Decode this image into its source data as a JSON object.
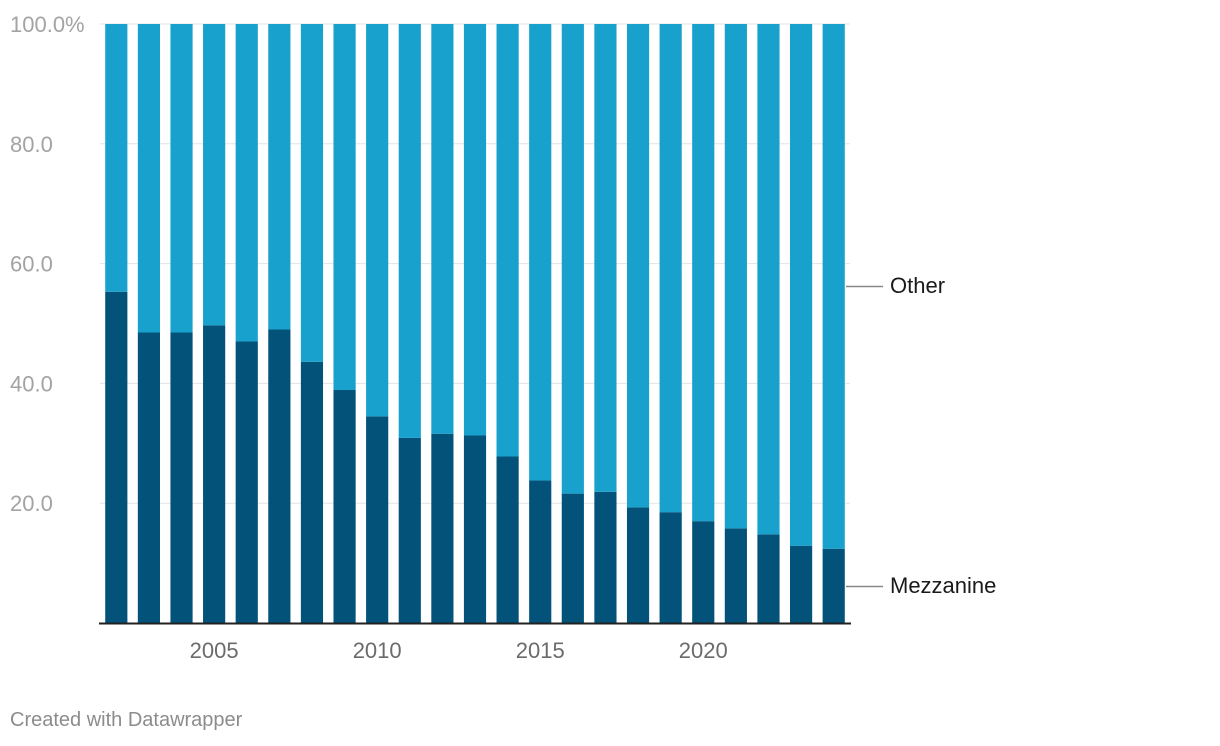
{
  "chart_data": {
    "type": "bar",
    "stacked": true,
    "categories": [
      "2002",
      "2003",
      "2004",
      "2005",
      "2006",
      "2007",
      "2008",
      "2009",
      "2010",
      "2011",
      "2012",
      "2013",
      "2014",
      "2015",
      "2016",
      "2017",
      "2018",
      "2019",
      "2020",
      "2021",
      "2022",
      "2023",
      "2024"
    ],
    "series": [
      {
        "name": "Mezzanine",
        "color": "#03527a",
        "values": [
          55.3,
          48.5,
          48.5,
          49.7,
          47.0,
          49.0,
          43.6,
          38.9,
          34.5,
          30.9,
          31.6,
          31.3,
          27.8,
          23.8,
          21.6,
          21.9,
          19.3,
          18.5,
          17.0,
          15.8,
          14.8,
          12.9,
          12.4
        ]
      },
      {
        "name": "Other",
        "color": "#18a1cd",
        "values": [
          44.7,
          51.5,
          51.5,
          50.3,
          53.0,
          51.0,
          56.4,
          61.1,
          65.5,
          69.1,
          68.4,
          68.7,
          72.2,
          76.2,
          78.4,
          78.1,
          80.7,
          81.5,
          83.0,
          84.2,
          85.2,
          87.1,
          87.6
        ]
      }
    ],
    "ylim": [
      0,
      100
    ],
    "y_ticks": [
      "20.0",
      "40.0",
      "60.0",
      "80.0",
      "100.0%"
    ],
    "x_tick_labels": [
      "2005",
      "2010",
      "2015",
      "2020"
    ],
    "labels": {
      "other": "Other",
      "mezzanine": "Mezzanine"
    },
    "grid": true,
    "title": "",
    "xlabel": "",
    "ylabel": ""
  },
  "footer": {
    "credit": "Created with Datawrapper"
  }
}
